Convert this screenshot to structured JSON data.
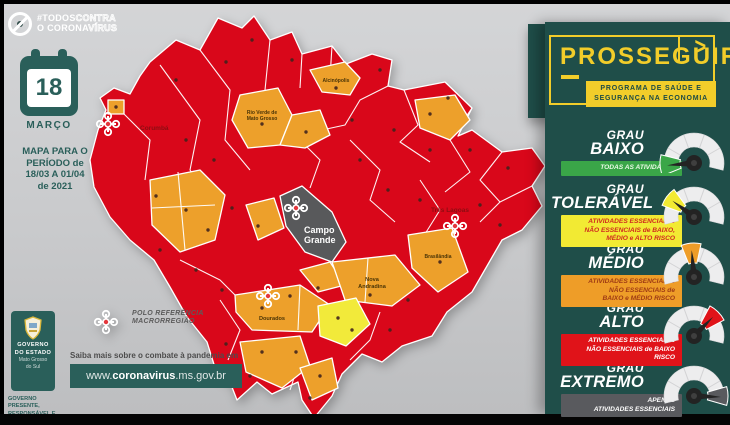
{
  "colors": {
    "red": "#d9071a",
    "orange": "#eda02b",
    "yellow": "#f2ea3a",
    "gray": "#58595b",
    "teal": "#2a5f5a",
    "panel": "#1f4e49",
    "gold": "#f2cd2a",
    "map_bg": "#c9cacc"
  },
  "campaign": {
    "tag_solid1": "#TODOS",
    "tag_outline1": "CONTRA",
    "tag_solid2": "O CORONA",
    "tag_outline2": "VÍRUS"
  },
  "calendar": {
    "day": "18",
    "month": "MARÇO"
  },
  "period": "MAPA PARA O\nPERÍODO de\n18/03 A 01/04\nde 2021",
  "gov": {
    "badge_line1": "GOVERNO",
    "badge_line2": "DO ESTADO",
    "badge_line3": "Mato Grosso",
    "badge_line4": "do Sul",
    "motto": "GOVERNO\nPRESENTE,\nRESPONSÁVEL E\nTRANSPARENTE"
  },
  "footer": {
    "info": "Saiba mais sobre o combate à pandemia em",
    "url_prefix": "www.",
    "url_bold": "coronavirus",
    "url_suffix": ".ms.gov.br"
  },
  "map": {
    "polo_legend_line1": "POLO REFERÊNCIA",
    "polo_legend_line2": "MACRORREGIÃO",
    "labels": {
      "campo_grande_1": "Campo",
      "campo_grande_2": "Grande",
      "dourados": "Dourados",
      "nova_andradina_1": "Nova",
      "nova_andradina_2": "Andradina",
      "tres_lagoas": "Três Lagoas",
      "corumba": "Corumbá",
      "alcinopolis": "Alcinópolis",
      "rio_verde_1": "Rio Verde de",
      "rio_verde_2": "Mato Grosso",
      "brasilandia": "Brasilândia"
    }
  },
  "panel": {
    "logo_title": "PROSSEGUIR",
    "logo_chevron": ">",
    "logo_sub": "PROGRAMA DE SAÚDE E\nSEGURANÇA NA ECONOMIA",
    "levels": [
      {
        "grau": "GRAU",
        "name": "BAIXO",
        "desc": "TODAS AS ATIVIDADES",
        "bar": "#3aa648",
        "fg": "#eafbe6",
        "needle": 185,
        "wedge0": 166,
        "wedge1": 202
      },
      {
        "grau": "GRAU",
        "name": "TOLERÁVEL",
        "desc": "ATIVIDADES ESSENCIAIS e\nNÃO ESSENCIAIS de BAIXO,\nMÉDIO e ALTO RISCO",
        "bar": "#f2ea33",
        "fg": "#cf2b1f",
        "needle": 143,
        "wedge0": 126,
        "wedge1": 160
      },
      {
        "grau": "GRAU",
        "name": "MÉDIO",
        "desc": "ATIVIDADES ESSENCIAIS e\nNÃO ESSENCIAIS de\nBAIXO e MÉDIO RISCO",
        "bar": "#ee9d28",
        "fg": "#9e3a14",
        "needle": 95,
        "wedge0": 78,
        "wedge1": 112
      },
      {
        "grau": "GRAU",
        "name": "ALTO",
        "desc": "ATIVIDADES ESSENCIAIS e\nNÃO ESSENCIAIS de BAIXO RISCO",
        "bar": "#e01319",
        "fg": "#ffffff",
        "needle": 45,
        "wedge0": 28,
        "wedge1": 62
      },
      {
        "grau": "GRAU",
        "name": "EXTREMO",
        "desc": "APENAS\nATIVIDADES ESSENCIAIS",
        "bar": "#595a5e",
        "fg": "#ffffff",
        "needle": -2,
        "wedge0": -16,
        "wedge1": 16
      }
    ]
  }
}
